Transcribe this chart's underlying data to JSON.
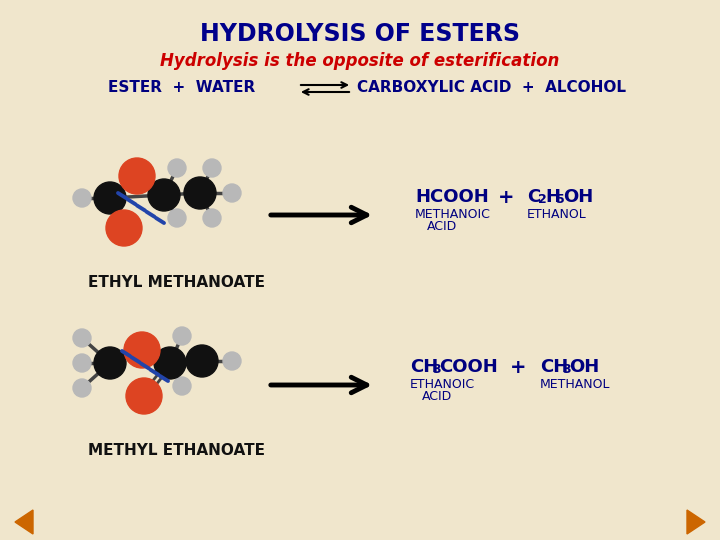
{
  "title": "HYDROLYSIS OF ESTERS",
  "subtitle": "Hydrolysis is the opposite of esterification",
  "bg_color": "#f0e6cc",
  "title_color": "#00008B",
  "subtitle_color": "#cc0000",
  "eq_color": "#000080",
  "black_atom": "#111111",
  "red_atom": "#dd4422",
  "gray_atom": "#b8b8b8",
  "dblue": "#2244aa",
  "nav_color": "#cc6600",
  "label1": "ETHYL METHANOATE",
  "label2": "METHYL ETHANOATE"
}
